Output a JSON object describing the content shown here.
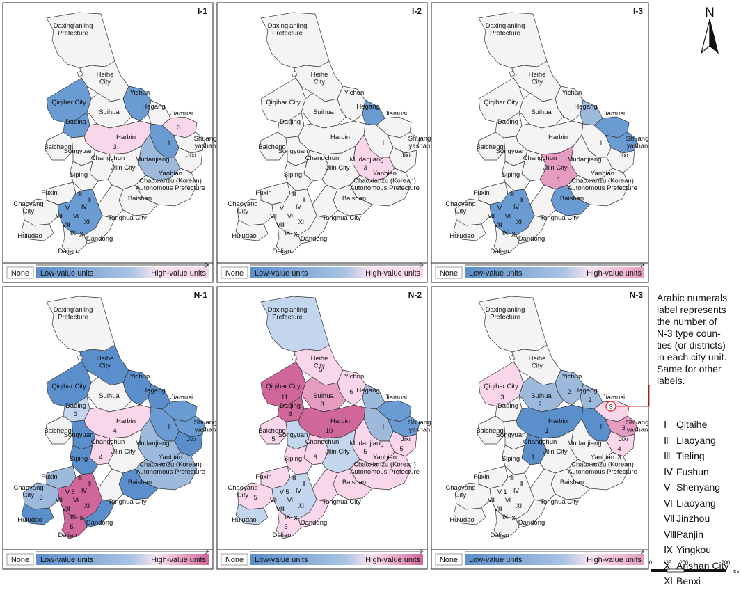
{
  "panels": [
    {
      "id": "I-1",
      "legend": [
        "None",
        "Low-value units",
        "High-value units"
      ],
      "legend_colors": [
        "#ffffff",
        "#5b8fcc",
        "#f9d6ea"
      ],
      "fills": {
        "daxinganling": "#f4f4f4",
        "heihe": "#f4f4f4",
        "yichun": "#6a9bd2",
        "qiqihar": "#6a9bd2",
        "suihua": "#f4f4f4",
        "hegang": "#f4f4f4",
        "jiamusi": "#f9d6ea",
        "shuangyashan": "#f4f4f4",
        "daqing": "#6a9bd2",
        "harbin": "#f9d6ea",
        "jixi": "#f4f4f4",
        "qitaihe": "#6a9bd2",
        "mudanjiang": "#9dbadc",
        "baicheng": "#f4f4f4",
        "songyuan": "#f4f4f4",
        "changchun": "#f4f4f4",
        "jilin": "#f4f4f4",
        "siping": "#f4f4f4",
        "yanbian": "#f4f4f4",
        "baishan": "#f4f4f4",
        "tonghua": "#f4f4f4",
        "chaoyang": "#f4f4f4",
        "fuxin": "#f4f4f4",
        "huludao": "#f4f4f4",
        "liaoningcore": "#6a9bd2",
        "dandong": "#f4f4f4",
        "dalian": "#f4f4f4"
      },
      "numbers": [
        {
          "unit": "jiamusi",
          "text": "3"
        },
        {
          "unit": "harbin",
          "text": "3"
        }
      ]
    },
    {
      "id": "I-2",
      "legend": [
        "None",
        "Low-value units",
        "High-value units"
      ],
      "legend_colors": [
        "#ffffff",
        "#5b8fcc",
        "#f9d6ea"
      ],
      "fills": {
        "daxinganling": "#f4f4f4",
        "heihe": "#f4f4f4",
        "yichun": "#f4f4f4",
        "qiqihar": "#f4f4f4",
        "suihua": "#f4f4f4",
        "hegang": "#6a9bd2",
        "jiamusi": "#f4f4f4",
        "shuangyashan": "#f4f4f4",
        "daqing": "#f4f4f4",
        "harbin": "#f4f4f4",
        "jixi": "#f4f4f4",
        "qitaihe": "#f4f4f4",
        "mudanjiang": "#f9d6ea",
        "baicheng": "#f4f4f4",
        "songyuan": "#f4f4f4",
        "changchun": "#f4f4f4",
        "jilin": "#f4f4f4",
        "siping": "#f4f4f4",
        "yanbian": "#f4f4f4",
        "baishan": "#f4f4f4",
        "tonghua": "#f4f4f4",
        "chaoyang": "#f4f4f4",
        "fuxin": "#f4f4f4",
        "huludao": "#f4f4f4",
        "liaoningcore": "#f4f4f4",
        "dandong": "#f4f4f4",
        "dalian": "#f4f4f4"
      },
      "numbers": [
        {
          "unit": "mudanjiang",
          "text": "3"
        }
      ]
    },
    {
      "id": "I-3",
      "legend": [
        "None",
        "Low-value units",
        "High-value units"
      ],
      "legend_colors": [
        "#ffffff",
        "#5b8fcc",
        "#e59cc0"
      ],
      "fills": {
        "daxinganling": "#f4f4f4",
        "heihe": "#f4f4f4",
        "yichun": "#f4f4f4",
        "qiqihar": "#f4f4f4",
        "suihua": "#f4f4f4",
        "hegang": "#9dbadc",
        "jiamusi": "#6a9bd2",
        "shuangyashan": "#6a9bd2",
        "daqing": "#f4f4f4",
        "harbin": "#f4f4f4",
        "jixi": "#f4f4f4",
        "qitaihe": "#f4f4f4",
        "mudanjiang": "#f4f4f4",
        "baicheng": "#f4f4f4",
        "songyuan": "#f4f4f4",
        "changchun": "#f4f4f4",
        "jilin": "#e59cc0",
        "siping": "#f4f4f4",
        "yanbian": "#f4f4f4",
        "baishan": "#6a9bd2",
        "tonghua": "#f4f4f4",
        "chaoyang": "#f4f4f4",
        "fuxin": "#f4f4f4",
        "huludao": "#f4f4f4",
        "liaoningcore": "#6a9bd2",
        "dandong": "#f4f4f4",
        "dalian": "#f4f4f4"
      },
      "numbers": [
        {
          "unit": "jilin",
          "text": "5"
        }
      ]
    },
    {
      "id": "N-1",
      "legend": [
        "None",
        "Low-value units",
        "High-value units"
      ],
      "legend_colors": [
        "#ffffff",
        "#5b8fcc",
        "#d0679a"
      ],
      "fills": {
        "daxinganling": "#f4f4f4",
        "heihe": "#5b8fcc",
        "yichun": "#5b8fcc",
        "qiqihar": "#5b8fcc",
        "suihua": "#f4f4f4",
        "hegang": "#5b8fcc",
        "jiamusi": "#6a9bd2",
        "shuangyashan": "#6a9bd2",
        "daqing": "#c4d6ee",
        "harbin": "#f9d6ea",
        "jixi": "#5b8fcc",
        "qitaihe": "#6a9bd2",
        "mudanjiang": "#9dbadc",
        "baicheng": "#f4f4f4",
        "songyuan": "#5b8fcc",
        "changchun": "#f9d6ea",
        "jilin": "#f4f4f4",
        "siping": "#5b8fcc",
        "yanbian": "#9dbadc",
        "baishan": "#5b8fcc",
        "tonghua": "#f4f4f4",
        "chaoyang": "#9dbadc",
        "fuxin": "#9dbadc",
        "huludao": "#5b8fcc",
        "liaoningcore": "#d0679a",
        "dandong": "#5b8fcc",
        "dalian": "#d0679a"
      },
      "numbers": [
        {
          "unit": "daqing",
          "text": "3"
        },
        {
          "unit": "harbin",
          "text": "4"
        },
        {
          "unit": "changchun",
          "text": "4"
        },
        {
          "unit": "liaoningcore",
          "text": "8"
        },
        {
          "unit": "chaoyang",
          "text": "3"
        },
        {
          "unit": "dalian",
          "text": "5"
        }
      ]
    },
    {
      "id": "N-2",
      "legend": [
        "None",
        "Low-value units",
        "High-value units"
      ],
      "legend_colors": [
        "#ffffff",
        "#5b8fcc",
        "#d0679a"
      ],
      "fills": {
        "daxinganling": "#c4d6ee",
        "heihe": "#f9d6ea",
        "yichun": "#f9d6ea",
        "qiqihar": "#d0679a",
        "suihua": "#e59cc0",
        "hegang": "#9dbadc",
        "jiamusi": "#6a9bd2",
        "shuangyashan": "#6a9bd2",
        "daqing": "#d0679a",
        "harbin": "#d0679a",
        "jixi": "#f9d6ea",
        "qitaihe": "#9dbadc",
        "mudanjiang": "#f9d6ea",
        "baicheng": "#f9d6ea",
        "songyuan": "#c4d6ee",
        "changchun": "#f9d6ea",
        "jilin": "#c4d6ee",
        "siping": "#f9d6ea",
        "yanbian": "#f9d6ea",
        "baishan": "#f9d6ea",
        "tonghua": "#f9d6ea",
        "chaoyang": "#f9d6ea",
        "fuxin": "#f9d6ea",
        "huludao": "#c4d6ee",
        "liaoningcore": "#c4d6ee",
        "dandong": "#f9d6ea",
        "dalian": "#f9d6ea"
      },
      "numbers": [
        {
          "unit": "heihe",
          "text": "5"
        },
        {
          "unit": "qiqihar",
          "text": "11"
        },
        {
          "unit": "yichun",
          "text": "6"
        },
        {
          "unit": "suihua",
          "text": "8"
        },
        {
          "unit": "daqing",
          "text": "6"
        },
        {
          "unit": "harbin",
          "text": "10"
        },
        {
          "unit": "jixi",
          "text": "5"
        },
        {
          "unit": "mudanjiang",
          "text": "5"
        },
        {
          "unit": "baicheng",
          "text": "5"
        },
        {
          "unit": "changchun",
          "text": "6"
        },
        {
          "unit": "chaoyang",
          "text": "5"
        },
        {
          "unit": "liaoningcore",
          "text": "5"
        },
        {
          "unit": "dalian",
          "text": "5"
        }
      ]
    },
    {
      "id": "N-3",
      "legend": [
        "None",
        "Low-value units",
        "High-value units"
      ],
      "legend_colors": [
        "#ffffff",
        "#5b8fcc",
        "#e59cc0"
      ],
      "fills": {
        "daxinganling": "#f4f4f4",
        "heihe": "#f4f4f4",
        "yichun": "#9dbadc",
        "qiqihar": "#f9d6ea",
        "suihua": "#9dbadc",
        "hegang": "#9dbadc",
        "jiamusi": "#f9d6ea",
        "shuangyashan": "#e59cc0",
        "daqing": "#f4f4f4",
        "harbin": "#5b8fcc",
        "jixi": "#f9d6ea",
        "qitaihe": "#5b8fcc",
        "mudanjiang": "#f4f4f4",
        "baicheng": "#f4f4f4",
        "songyuan": "#f4f4f4",
        "changchun": "#5b8fcc",
        "jilin": "#f4f4f4",
        "siping": "#f4f4f4",
        "yanbian": "#f4f4f4",
        "baishan": "#f4f4f4",
        "tonghua": "#f4f4f4",
        "chaoyang": "#f4f4f4",
        "fuxin": "#f4f4f4",
        "huludao": "#f4f4f4",
        "liaoningcore": "#f4f4f4",
        "dandong": "#f4f4f4",
        "dalian": "#f4f4f4"
      },
      "numbers": [
        {
          "unit": "qiqihar",
          "text": "3"
        },
        {
          "unit": "yichun",
          "text": "2"
        },
        {
          "unit": "suihua",
          "text": "2"
        },
        {
          "unit": "hegang",
          "text": "2"
        },
        {
          "unit": "shuangyashan",
          "text": "3"
        },
        {
          "unit": "harbin",
          "text": "1"
        },
        {
          "unit": "jixi",
          "text": "4"
        },
        {
          "unit": "jixi",
          "text": "3"
        },
        {
          "unit": "changchun",
          "text": "1"
        },
        {
          "unit": "liaoningcore",
          "text": "1"
        }
      ]
    }
  ],
  "labels": {
    "daxinganling": [
      "Daxing'anling",
      "Prefecture"
    ],
    "heihe": [
      "Heihe",
      "City"
    ],
    "yichun": [
      "Yichun"
    ],
    "qiqihar": [
      "Qiqihar City"
    ],
    "hegang": [
      "Hegang"
    ],
    "jiamusi": [
      "Jiamusi"
    ],
    "suihua": [
      "Suihua"
    ],
    "shuangyashan": [
      "Shuang",
      "yashan"
    ],
    "daqing": [
      "Daqing"
    ],
    "harbin": [
      "Harbin"
    ],
    "jixi": [
      "Jixi"
    ],
    "baicheng": [
      "Baicheng"
    ],
    "songyuan": [
      "Songyuan"
    ],
    "mudanjiang": [
      "Mudanjiang"
    ],
    "changchun": [
      "Changchun"
    ],
    "jilin": [
      "Jilin City"
    ],
    "siping": [
      "Siping"
    ],
    "yanbian": [
      "Yanbian",
      "Chaoxianzu (Korean)",
      "Autonomous Prefecture"
    ],
    "fuxin": [
      "Fuxin"
    ],
    "baishan": [
      "Baishan"
    ],
    "chaoyang": [
      "Chaoyang",
      "City"
    ],
    "tonghua": [
      "Tonghua City"
    ],
    "huludao": [
      "Huludao"
    ],
    "dandong": [
      "Dandong"
    ],
    "dalian": [
      "Dalian"
    ]
  },
  "roman_numerals": [
    "Ⅰ",
    "Ⅱ",
    "Ⅲ",
    "Ⅳ",
    "Ⅴ",
    "Ⅵ",
    "Ⅶ",
    "Ⅷ",
    "Ⅸ",
    "Ⅹ",
    "Ⅺ"
  ],
  "roman_legend": [
    {
      "num": "Ⅰ",
      "name": "Qitaihe"
    },
    {
      "num": "Ⅱ",
      "name": "Liaoyang"
    },
    {
      "num": "Ⅲ",
      "name": "Tieling"
    },
    {
      "num": "Ⅳ",
      "name": "Fushun"
    },
    {
      "num": "Ⅴ",
      "name": "Shenyang"
    },
    {
      "num": "Ⅵ",
      "name": "Liaoyang"
    },
    {
      "num": "Ⅶ",
      "name": "Jinzhou"
    },
    {
      "num": "Ⅷ",
      "name": "Panjin"
    },
    {
      "num": "Ⅸ",
      "name": "Yingkou"
    },
    {
      "num": "Ⅹ",
      "name": "Anshan City"
    },
    {
      "num": "Ⅺ",
      "name": "Benxi"
    }
  ],
  "note_lines": [
    "Arabic numerals",
    "label represents",
    "the number of",
    "N-3 type coun-",
    "ties (or districts)",
    "in each city unit.",
    "Same for other",
    "labels."
  ],
  "callout_number": "3",
  "north_label": "N",
  "scale": {
    "ticks": [
      "0",
      "125",
      "250",
      "500"
    ],
    "unit": "Km"
  },
  "colors": {
    "border": "#333333",
    "none": "#f4f4f4",
    "callout": "#e0303a"
  }
}
